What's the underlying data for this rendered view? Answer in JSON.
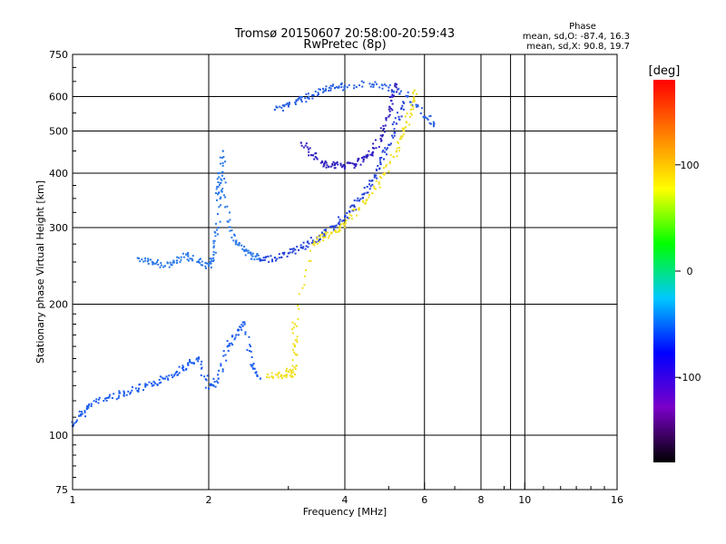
{
  "header": {
    "title": "Tromsø 20150607 20:58:00-20:59:43",
    "subtitle": "RwPretec (8p)",
    "phase_heading": "Phase",
    "phase_o": "mean, sd,O: -87.4, 16.3",
    "phase_x": "mean, sd,X:  90.8, 19.7"
  },
  "chart_data": {
    "type": "scatter",
    "title": "Tromsø 20150607 20:58:00-20:59:43",
    "subtitle": "RwPretec (8p)",
    "xlabel": "Frequency [MHz]",
    "ylabel": "Stationary phase Virtual Height [km]",
    "x_scale": "log",
    "y_scale": "log",
    "xlim": [
      1,
      16
    ],
    "ylim": [
      75,
      750
    ],
    "x_ticks": [
      1,
      2,
      4,
      6,
      8,
      10,
      16
    ],
    "x_tick_labels": [
      "1",
      "2",
      "4",
      "6",
      "8",
      "10",
      "16"
    ],
    "y_ticks": [
      75,
      100,
      200,
      300,
      400,
      500,
      600,
      750
    ],
    "y_tick_labels": [
      "75",
      "100",
      "200",
      "300",
      "400",
      "500",
      "600",
      "750"
    ],
    "grid": true,
    "colorbar": {
      "label": "[deg]",
      "range": [
        -180,
        180
      ],
      "ticks": [
        -100,
        0,
        100
      ],
      "tick_labels": [
        "-100",
        "0",
        "100"
      ],
      "colors": [
        "#000000",
        "#7a00c8",
        "#0000ff",
        "#00c8ff",
        "#00ff00",
        "#ffff00",
        "#ff8000",
        "#ff0000"
      ]
    },
    "series": [
      {
        "phase": -95,
        "color": "#1a5cf0",
        "points": [
          [
            1.0,
            105
          ],
          [
            1.05,
            112
          ],
          [
            1.1,
            118
          ],
          [
            1.2,
            122
          ],
          [
            1.3,
            125
          ],
          [
            1.4,
            128
          ],
          [
            1.5,
            130
          ],
          [
            1.6,
            135
          ],
          [
            1.7,
            140
          ],
          [
            1.8,
            145
          ],
          [
            1.9,
            150
          ],
          [
            2.0,
            128
          ],
          [
            2.1,
            135
          ],
          [
            2.2,
            160
          ],
          [
            2.3,
            170
          ],
          [
            2.4,
            180
          ],
          [
            2.5,
            145
          ],
          [
            2.6,
            135
          ]
        ]
      },
      {
        "phase": -90,
        "color": "#2a78e8",
        "points": [
          [
            1.4,
            255
          ],
          [
            1.5,
            250
          ],
          [
            1.6,
            245
          ],
          [
            1.7,
            252
          ],
          [
            1.8,
            258
          ],
          [
            1.9,
            250
          ],
          [
            2.0,
            245
          ],
          [
            2.05,
            260
          ],
          [
            2.1,
            300
          ],
          [
            2.1,
            400
          ],
          [
            2.12,
            350
          ],
          [
            2.15,
            450
          ],
          [
            2.2,
            310
          ],
          [
            2.3,
            280
          ],
          [
            2.4,
            265
          ],
          [
            2.5,
            258
          ],
          [
            2.6,
            254
          ]
        ]
      },
      {
        "phase": -100,
        "color": "#2040d8",
        "points": [
          [
            2.6,
            252
          ],
          [
            2.8,
            256
          ],
          [
            3.0,
            262
          ],
          [
            3.2,
            270
          ],
          [
            3.4,
            280
          ],
          [
            3.6,
            290
          ],
          [
            3.8,
            302
          ],
          [
            4.0,
            318
          ],
          [
            4.2,
            335
          ],
          [
            4.4,
            358
          ],
          [
            4.6,
            385
          ],
          [
            4.8,
            420
          ],
          [
            5.0,
            465
          ],
          [
            5.2,
            520
          ],
          [
            5.4,
            580
          ]
        ]
      },
      {
        "phase": -110,
        "color": "#3020c0",
        "points": [
          [
            3.2,
            470
          ],
          [
            3.4,
            440
          ],
          [
            3.6,
            420
          ],
          [
            3.8,
            418
          ],
          [
            4.0,
            415
          ],
          [
            4.2,
            420
          ],
          [
            4.4,
            430
          ],
          [
            4.6,
            445
          ],
          [
            4.8,
            480
          ],
          [
            5.0,
            540
          ],
          [
            5.1,
            600
          ],
          [
            5.2,
            640
          ]
        ]
      },
      {
        "phase": -95,
        "color": "#2860e0",
        "points": [
          [
            2.8,
            560
          ],
          [
            3.0,
            575
          ],
          [
            3.2,
            590
          ],
          [
            3.4,
            605
          ],
          [
            3.6,
            618
          ],
          [
            3.8,
            628
          ],
          [
            4.0,
            635
          ],
          [
            4.6,
            640
          ],
          [
            5.0,
            630
          ],
          [
            5.5,
            600
          ],
          [
            6.0,
            540
          ],
          [
            6.3,
            520
          ]
        ]
      },
      {
        "phase": 95,
        "color": "#f0e020",
        "points": [
          [
            2.7,
            138
          ],
          [
            2.9,
            137
          ],
          [
            3.0,
            140
          ],
          [
            3.1,
            138
          ],
          [
            3.1,
            160
          ],
          [
            3.1,
            180
          ],
          [
            3.4,
            275
          ],
          [
            3.6,
            285
          ],
          [
            3.8,
            295
          ],
          [
            4.0,
            305
          ],
          [
            4.3,
            330
          ],
          [
            4.6,
            360
          ],
          [
            4.9,
            400
          ],
          [
            5.2,
            450
          ],
          [
            5.4,
            500
          ],
          [
            5.6,
            560
          ],
          [
            5.7,
            620
          ]
        ]
      }
    ]
  }
}
